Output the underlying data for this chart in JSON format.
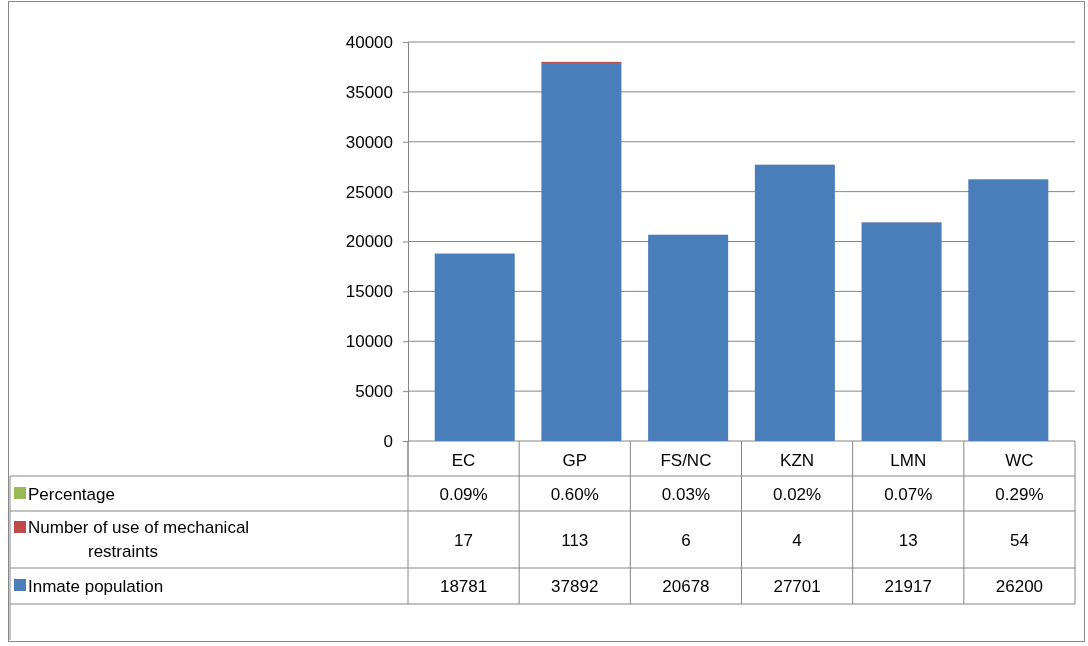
{
  "chart_data": {
    "type": "bar",
    "stacked": true,
    "categories": [
      "EC",
      "GP",
      "FS/NC",
      "KZN",
      "LMN",
      "WC"
    ],
    "series": [
      {
        "name": "Inmate population",
        "color": "#4a7ebb",
        "values": [
          18781,
          37892,
          20678,
          27701,
          21917,
          26200
        ],
        "value_labels": [
          "18781",
          "37892",
          "20678",
          "27701",
          "21917",
          "26200"
        ]
      },
      {
        "name": "Number of use of mechanical restraints",
        "color": "#be4b48",
        "values": [
          17,
          113,
          6,
          4,
          13,
          54
        ],
        "value_labels": [
          "17",
          "113",
          "6",
          "4",
          "13",
          "54"
        ]
      },
      {
        "name": "Percentage",
        "color": "#98b954",
        "values": [
          0.09,
          0.6,
          0.03,
          0.02,
          0.07,
          0.29
        ],
        "value_labels": [
          "0.09%",
          "0.60%",
          "0.03%",
          "0.02%",
          "0.07%",
          "0.29%"
        ]
      }
    ],
    "ylim": [
      0,
      40000
    ],
    "yticks": [
      0,
      5000,
      10000,
      15000,
      20000,
      25000,
      30000,
      35000,
      40000
    ],
    "grid": "y",
    "legend": "bottom"
  }
}
